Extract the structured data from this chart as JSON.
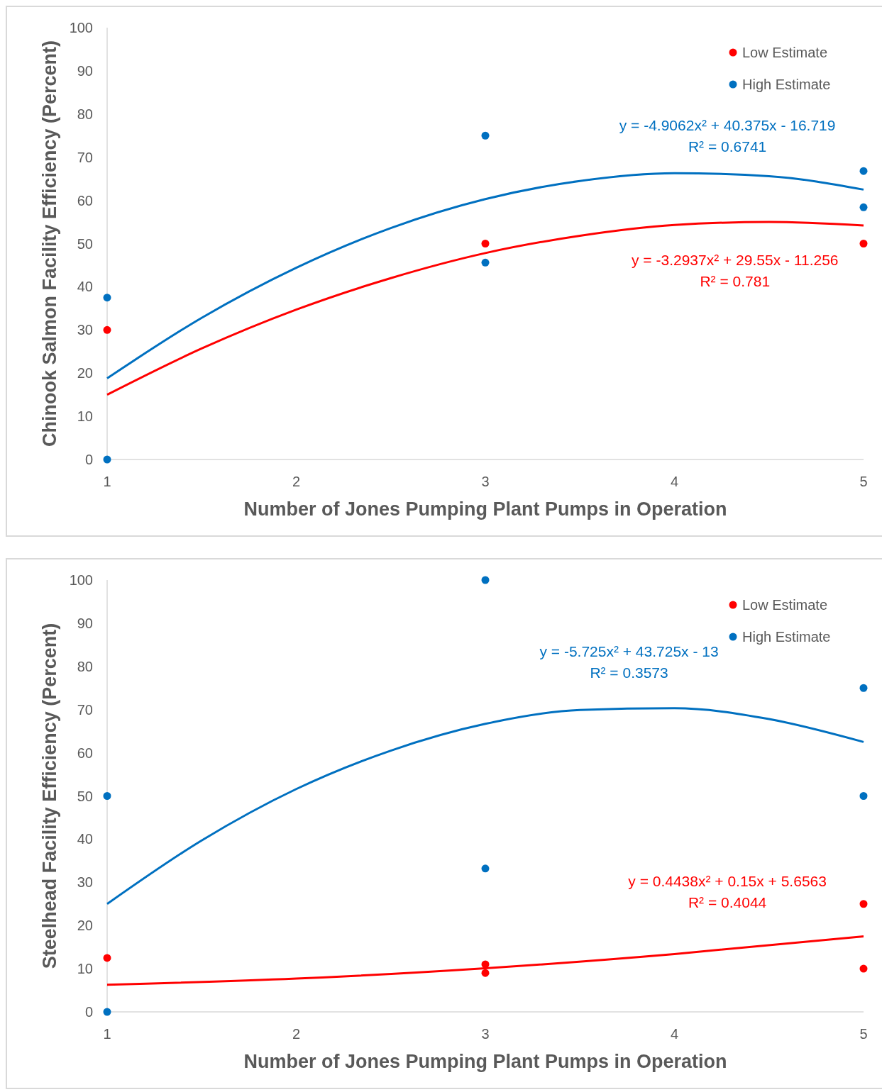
{
  "chart_data": [
    {
      "type": "scatter",
      "xlabel": "Number of Jones Pumping Plant Pumps in Operation",
      "ylabel": "Chinook Salmon Facility Efficiency (Percent)",
      "xlim": [
        1,
        5
      ],
      "xticks": [
        1,
        2,
        3,
        4,
        5
      ],
      "ylim": [
        0,
        100
      ],
      "yticks": [
        0,
        10,
        20,
        30,
        40,
        50,
        60,
        70,
        80,
        90,
        100
      ],
      "grid": false,
      "legend": "top right",
      "marker": "circle",
      "series": [
        {
          "name": "Low Estimate",
          "color": "#ff0000",
          "x": [
            1,
            3,
            5
          ],
          "values": [
            30,
            50,
            50
          ]
        },
        {
          "name": "High Estimate",
          "color": "#0070c0",
          "x": [
            1,
            1,
            3,
            3,
            5,
            5
          ],
          "values": [
            37.5,
            0,
            75,
            45.6,
            66.8,
            58.4
          ]
        },
        {
          "type": "line",
          "color": "#0070c0",
          "marker": "none",
          "line_style": "solid",
          "x": [
            1,
            1.5,
            2,
            2.5,
            3,
            3.5,
            4,
            4.5,
            5
          ],
          "values": [
            18.8,
            32.8,
            44.4,
            53.6,
            60.3,
            64.5,
            66.3,
            65.6,
            62.5
          ]
        },
        {
          "type": "line",
          "color": "#ff0000",
          "marker": "none",
          "line_style": "solid",
          "x": [
            1,
            1.5,
            2,
            2.5,
            3,
            3.5,
            4,
            4.5,
            5
          ],
          "values": [
            15.0,
            25.7,
            34.7,
            42.0,
            47.8,
            51.8,
            54.3,
            55.0,
            54.2
          ]
        }
      ],
      "annotations": [
        "y = -4.9062x² + 40.375x - 16.719",
        "R² = 0.6741",
        "y = -3.2937x² + 29.55x - 11.256",
        "R² = 0.781"
      ]
    },
    {
      "type": "scatter",
      "xlabel": "Number of Jones Pumping Plant Pumps in Operation",
      "ylabel": "Steelhead Facility Efficiency (Percent)",
      "xlim": [
        1,
        5
      ],
      "xticks": [
        1,
        2,
        3,
        4,
        5
      ],
      "ylim": [
        0,
        100
      ],
      "yticks": [
        0,
        10,
        20,
        30,
        40,
        50,
        60,
        70,
        80,
        90,
        100
      ],
      "grid": false,
      "legend": "top right",
      "marker": "circle",
      "series": [
        {
          "name": "Low Estimate",
          "color": "#ff0000",
          "x": [
            1,
            3,
            3,
            5,
            5
          ],
          "values": [
            12.5,
            11,
            9,
            25,
            10
          ]
        },
        {
          "name": "High Estimate",
          "color": "#0070c0",
          "x": [
            1,
            1,
            3,
            3,
            5,
            5
          ],
          "values": [
            50,
            0,
            100,
            33.2,
            75,
            50
          ]
        },
        {
          "type": "line",
          "color": "#0070c0",
          "marker": "none",
          "line_style": "solid",
          "x": [
            1,
            1.5,
            2,
            2.5,
            3,
            3.5,
            4,
            4.5,
            5
          ],
          "values": [
            25.0,
            39.7,
            51.6,
            60.5,
            66.7,
            69.9,
            70.3,
            67.8,
            62.5
          ]
        },
        {
          "type": "line",
          "color": "#ff0000",
          "marker": "none",
          "line_style": "solid",
          "x": [
            1,
            2,
            3,
            4,
            5
          ],
          "values": [
            6.3,
            7.7,
            10.1,
            13.4,
            17.5
          ]
        }
      ],
      "annotations": [
        "y = -5.725x² + 43.725x - 13",
        "R² = 0.3573",
        "y = 0.4438x² + 0.15x + 5.6563",
        "R² = 0.4044"
      ]
    }
  ]
}
